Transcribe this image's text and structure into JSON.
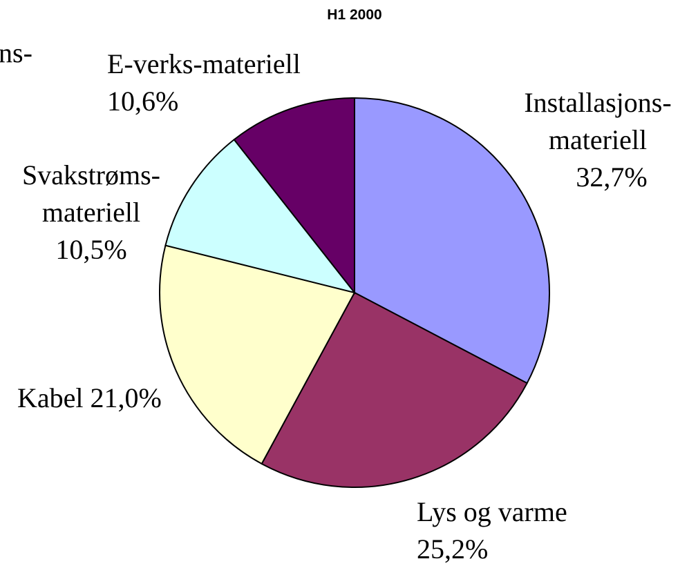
{
  "chart_data": {
    "type": "pie",
    "title": "H1 2000",
    "categories": [
      "Installasjons-materiell",
      "Lys og varme",
      "Kabel",
      "Svakstrøms-materiell",
      "E-verks-materiell"
    ],
    "values": [
      32.7,
      25.2,
      21.0,
      10.5,
      10.6
    ],
    "value_labels": [
      "32,7%",
      "25,2%",
      "21,0%",
      "10,5%",
      "10,6%"
    ],
    "colors": [
      "#9999ff",
      "#993366",
      "#ffffcc",
      "#ccffff",
      "#660066"
    ]
  },
  "fragments": [
    "ns-"
  ]
}
